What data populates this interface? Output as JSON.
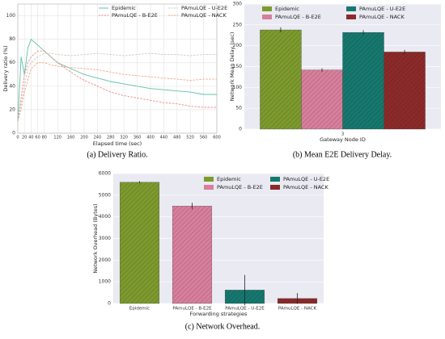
{
  "chart_data": [
    {
      "type": "line",
      "caption": "(a) Delivery Ratio.",
      "xlabel": "Elapsed time (sec)",
      "ylabel": "Delivery ratio (%)",
      "x": [
        0,
        10,
        20,
        30,
        40,
        60,
        80,
        100,
        120,
        160,
        200,
        240,
        280,
        320,
        360,
        400,
        440,
        480,
        520,
        560,
        600
      ],
      "xlim": [
        0,
        600
      ],
      "xticks": [
        0,
        20,
        40,
        60,
        80,
        120,
        160,
        200,
        240,
        280,
        320,
        360,
        400,
        440,
        480,
        520,
        560,
        600
      ],
      "ylim": [
        0,
        110
      ],
      "yticks": [
        0,
        20,
        40,
        60,
        80,
        100
      ],
      "grid": true,
      "series": [
        {
          "name": "Epidemic",
          "color": "#5cc3a8",
          "style": "solid",
          "values": [
            10,
            65,
            50,
            72,
            80,
            75,
            70,
            65,
            60,
            55,
            50,
            47,
            44,
            42,
            40,
            38,
            37,
            36,
            35,
            33,
            33
          ]
        },
        {
          "name": "PAmuLQE - B-E2E",
          "color": "#f08a8a",
          "style": "dashed",
          "values": [
            10,
            30,
            50,
            60,
            65,
            70,
            70,
            65,
            60,
            52,
            45,
            40,
            35,
            32,
            30,
            28,
            26,
            25,
            23,
            22,
            22
          ]
        },
        {
          "name": "PAmuLQE - U-E2E",
          "color": "#c9c9c9",
          "style": "dashed",
          "values": [
            10,
            25,
            40,
            55,
            60,
            65,
            68,
            68,
            67,
            66,
            67,
            68,
            67,
            66,
            67,
            68,
            67,
            67,
            66,
            67,
            67
          ]
        },
        {
          "name": "PAmuLQE - NACK",
          "color": "#f4a582",
          "style": "dashed",
          "values": [
            10,
            20,
            35,
            45,
            55,
            60,
            60,
            58,
            57,
            56,
            55,
            54,
            52,
            50,
            49,
            48,
            47,
            46,
            45,
            46,
            46
          ]
        }
      ]
    },
    {
      "type": "bar",
      "caption": "(b) Mean E2E Delivery Delay.",
      "xlabel": "Gateway Node ID",
      "ylabel": "Network Mean Delay (sec)",
      "categories": [
        "3"
      ],
      "ylim": [
        0,
        300
      ],
      "yticks": [
        0,
        50,
        100,
        150,
        200,
        250,
        300
      ],
      "grid": true,
      "series": [
        {
          "name": "Epidemic",
          "color": "#7d9a2e",
          "values": [
            238
          ],
          "errors": [
            6
          ]
        },
        {
          "name": "PAmuLQE - B-E2E",
          "color": "#d77f9c",
          "values": [
            142
          ],
          "errors": [
            4
          ]
        },
        {
          "name": "PAmuLQE - U-E2E",
          "color": "#16786f",
          "values": [
            232
          ],
          "errors": [
            5
          ]
        },
        {
          "name": "PAmuLQE - NACK",
          "color": "#8c2a2a",
          "values": [
            185
          ],
          "errors": [
            5
          ]
        }
      ]
    },
    {
      "type": "bar",
      "caption": "(c) Network Overhead.",
      "xlabel": "Forwarding strategies",
      "ylabel": "Network Overhead (Bytes)",
      "categories": [
        "Epidemic",
        "PAmuLQE - B-E2E",
        "PAmuLQE - U-E2E",
        "PAmuLQE - NACK"
      ],
      "ylim": [
        0,
        6000
      ],
      "yticks": [
        0,
        1000,
        2000,
        3000,
        4000,
        5000,
        6000
      ],
      "grid": true,
      "colors": [
        "#7d9a2e",
        "#d77f9c",
        "#16786f",
        "#8c2a2a"
      ],
      "values": [
        5600,
        4500,
        620,
        230
      ],
      "errors": [
        50,
        150,
        700,
        250
      ]
    }
  ]
}
